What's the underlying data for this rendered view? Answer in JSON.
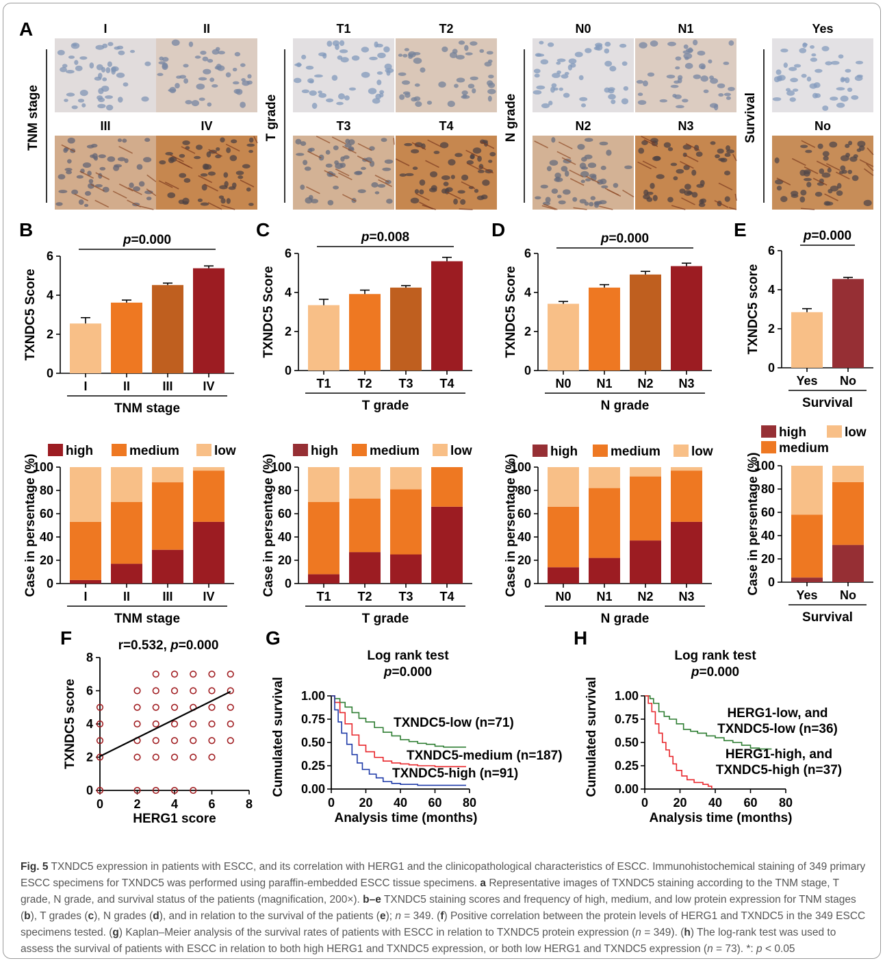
{
  "colors": {
    "low": "#f8bf87",
    "medium": "#ee7822",
    "medium_dark": "#bf5f1f",
    "high": "#9c1c22",
    "high_alt": "#962f34",
    "km_low": "#2e7d32",
    "km_medium": "#e8262b",
    "km_high": "#1e3aa8",
    "scatter_point": "#a01c20",
    "tissue_stain": "#b86a2d",
    "tissue_nuclei": "#8aa6cc"
  },
  "panel_letters": [
    "A",
    "B",
    "C",
    "D",
    "E",
    "F",
    "G",
    "H"
  ],
  "panel_a": {
    "groups": [
      {
        "row_label": "TNM stage",
        "labels": [
          "I",
          "II",
          "III",
          "IV"
        ],
        "stain_levels": [
          0.15,
          0.3,
          0.6,
          0.95
        ]
      },
      {
        "row_label": "T grade",
        "labels": [
          "T1",
          "T2",
          "T3",
          "T4"
        ],
        "stain_levels": [
          0.12,
          0.35,
          0.55,
          0.95
        ]
      },
      {
        "row_label": "N grade",
        "labels": [
          "N0",
          "N1",
          "N2",
          "N3"
        ],
        "stain_levels": [
          0.12,
          0.3,
          0.55,
          0.95
        ]
      },
      {
        "row_label": "Survival",
        "labels": [
          "Yes",
          "No"
        ],
        "stain_levels": [
          0.1,
          0.9
        ]
      }
    ]
  },
  "chart_data": [
    {
      "id": "B",
      "type": "bar",
      "categories": [
        "I",
        "II",
        "III",
        "IV"
      ],
      "values": [
        2.55,
        3.62,
        4.52,
        5.38
      ],
      "errors": [
        0.3,
        0.13,
        0.1,
        0.12
      ],
      "xlabel": "TNM stage",
      "ylabel": "TXNDC5 Score",
      "ylim": [
        0,
        6
      ],
      "yticks": [
        "0",
        "2",
        "4",
        "6"
      ],
      "pvalue": "=0.000",
      "bar_color_keys": [
        "low",
        "medium",
        "medium_dark",
        "high"
      ]
    },
    {
      "id": "C",
      "type": "bar",
      "categories": [
        "T1",
        "T2",
        "T3",
        "T4"
      ],
      "values": [
        3.35,
        3.92,
        4.25,
        5.6
      ],
      "errors": [
        0.3,
        0.2,
        0.1,
        0.2
      ],
      "xlabel": "T grade",
      "ylabel": "TXNDC5 Score",
      "ylim": [
        0,
        6
      ],
      "yticks": [
        "0",
        "2",
        "4",
        "6"
      ],
      "pvalue": "=0.008",
      "bar_color_keys": [
        "low",
        "medium",
        "medium_dark",
        "high"
      ]
    },
    {
      "id": "D",
      "type": "bar",
      "categories": [
        "N0",
        "N1",
        "N2",
        "N3"
      ],
      "values": [
        3.42,
        4.25,
        4.92,
        5.35
      ],
      "errors": [
        0.12,
        0.15,
        0.16,
        0.15
      ],
      "xlabel": "N grade",
      "ylabel": "TXNDC5 Score",
      "ylim": [
        0,
        6
      ],
      "yticks": [
        "0",
        "2",
        "4",
        "6"
      ],
      "pvalue": "=0.000",
      "bar_color_keys": [
        "low",
        "medium",
        "medium_dark",
        "high"
      ]
    },
    {
      "id": "E",
      "type": "bar",
      "categories": [
        "Yes",
        "No"
      ],
      "values": [
        2.85,
        4.55
      ],
      "errors": [
        0.18,
        0.08
      ],
      "xlabel": "Survival",
      "ylabel": "TXNDC5 score",
      "ylim": [
        0,
        6
      ],
      "yticks": [
        "0",
        "2",
        "4",
        "6"
      ],
      "pvalue": "=0.000",
      "bar_color_keys": [
        "low",
        "high_alt"
      ]
    },
    {
      "id": "B2",
      "type": "bar",
      "stacked": true,
      "categories": [
        "I",
        "II",
        "III",
        "IV"
      ],
      "series": [
        {
          "name": "high",
          "values": [
            3,
            17,
            29,
            53
          ]
        },
        {
          "name": "medium",
          "values": [
            50,
            53,
            58,
            44
          ]
        },
        {
          "name": "low",
          "values": [
            47,
            30,
            13,
            3
          ]
        }
      ],
      "xlabel": "TNM stage",
      "ylabel": "Case in persentage (%)",
      "ylim": [
        0,
        100
      ],
      "yticks": [
        "0",
        "20",
        "40",
        "60",
        "80",
        "100"
      ]
    },
    {
      "id": "C2",
      "type": "bar",
      "stacked": true,
      "categories": [
        "T1",
        "T2",
        "T3",
        "T4"
      ],
      "series": [
        {
          "name": "high",
          "values": [
            8,
            27,
            25,
            66
          ]
        },
        {
          "name": "medium",
          "values": [
            62,
            46,
            56,
            34
          ]
        },
        {
          "name": "low",
          "values": [
            30,
            27,
            19,
            0
          ]
        }
      ],
      "xlabel": "T grade",
      "ylabel": "Case in persentage (%)",
      "ylim": [
        0,
        100
      ],
      "yticks": [
        "0",
        "20",
        "40",
        "60",
        "80",
        "100"
      ]
    },
    {
      "id": "D2",
      "type": "bar",
      "stacked": true,
      "categories": [
        "N0",
        "N1",
        "N2",
        "N3"
      ],
      "series": [
        {
          "name": "high",
          "values": [
            14,
            22,
            37,
            53
          ]
        },
        {
          "name": "medium",
          "values": [
            52,
            60,
            55,
            44
          ]
        },
        {
          "name": "low",
          "values": [
            34,
            18,
            8,
            3
          ]
        }
      ],
      "xlabel": "N grade",
      "ylabel": "Case in persentage (%)",
      "ylim": [
        0,
        100
      ],
      "yticks": [
        "0",
        "20",
        "40",
        "60",
        "80",
        "100"
      ]
    },
    {
      "id": "E2",
      "type": "bar",
      "stacked": true,
      "categories": [
        "Yes",
        "No"
      ],
      "series": [
        {
          "name": "high",
          "values": [
            4,
            32
          ]
        },
        {
          "name": "medium",
          "values": [
            54,
            54
          ]
        },
        {
          "name": "low",
          "values": [
            42,
            14
          ]
        }
      ],
      "xlabel": "Survival",
      "ylabel": "Case in persentage (%)",
      "ylim": [
        0,
        100
      ],
      "yticks": [
        "0",
        "20",
        "40",
        "60",
        "80",
        "100"
      ]
    },
    {
      "id": "F",
      "type": "scatter",
      "xlabel": "HERG1 score",
      "ylabel": "TXNDC5 score",
      "xlim": [
        0,
        8
      ],
      "ylim": [
        0,
        8
      ],
      "xticks": [
        "0",
        "2",
        "4",
        "6",
        "8"
      ],
      "yticks": [
        "0",
        "2",
        "4",
        "6",
        "8"
      ],
      "annotation": "r=0.532, ",
      "pvalue": "=0.000",
      "regression": [
        [
          0,
          2.05
        ],
        [
          7,
          5.95
        ]
      ],
      "points": [
        [
          0,
          0
        ],
        [
          0,
          2
        ],
        [
          0,
          3
        ],
        [
          0,
          4
        ],
        [
          0,
          5
        ],
        [
          2,
          0
        ],
        [
          2,
          2
        ],
        [
          2,
          3
        ],
        [
          2,
          4
        ],
        [
          2,
          5
        ],
        [
          2,
          6
        ],
        [
          3,
          0
        ],
        [
          3,
          2
        ],
        [
          3,
          3
        ],
        [
          3,
          4
        ],
        [
          3,
          5
        ],
        [
          3,
          6
        ],
        [
          3,
          7
        ],
        [
          4,
          0
        ],
        [
          4,
          2
        ],
        [
          4,
          3
        ],
        [
          4,
          4
        ],
        [
          4,
          5
        ],
        [
          4,
          6
        ],
        [
          4,
          7
        ],
        [
          5,
          0
        ],
        [
          5,
          2
        ],
        [
          5,
          3
        ],
        [
          5,
          4
        ],
        [
          5,
          5
        ],
        [
          5,
          6
        ],
        [
          5,
          7
        ],
        [
          6,
          2
        ],
        [
          6,
          3
        ],
        [
          6,
          4
        ],
        [
          6,
          5
        ],
        [
          6,
          6
        ],
        [
          6,
          7
        ],
        [
          7,
          3
        ],
        [
          7,
          4
        ],
        [
          7,
          5
        ],
        [
          7,
          6
        ],
        [
          7,
          7
        ]
      ]
    },
    {
      "id": "G",
      "type": "line",
      "title": "Log rank test",
      "pvalue": "=0.000",
      "xlabel": "Analysis time (months)",
      "ylabel": "Cumulated survival",
      "xlim": [
        0,
        80
      ],
      "ylim": [
        0,
        1
      ],
      "xticks": [
        "0",
        "20",
        "40",
        "60",
        "80"
      ],
      "yticks": [
        "0.00",
        "0.25",
        "0.50",
        "0.75",
        "1.00"
      ],
      "series": [
        {
          "name": "TXNDC5-low (n=71)",
          "color_key": "km_low",
          "points": [
            [
              0,
              1
            ],
            [
              2,
              0.97
            ],
            [
              5,
              0.93
            ],
            [
              8,
              0.88
            ],
            [
              12,
              0.82
            ],
            [
              16,
              0.76
            ],
            [
              20,
              0.72
            ],
            [
              25,
              0.66
            ],
            [
              30,
              0.61
            ],
            [
              35,
              0.57
            ],
            [
              40,
              0.53
            ],
            [
              45,
              0.51
            ],
            [
              50,
              0.49
            ],
            [
              55,
              0.48
            ],
            [
              60,
              0.46
            ],
            [
              65,
              0.45
            ],
            [
              78,
              0.45
            ]
          ]
        },
        {
          "name": "TXNDC5-medium (n=187)",
          "color_key": "km_medium",
          "points": [
            [
              0,
              1
            ],
            [
              2,
              0.93
            ],
            [
              5,
              0.82
            ],
            [
              8,
              0.7
            ],
            [
              12,
              0.58
            ],
            [
              16,
              0.47
            ],
            [
              20,
              0.4
            ],
            [
              25,
              0.34
            ],
            [
              30,
              0.3
            ],
            [
              35,
              0.28
            ],
            [
              40,
              0.27
            ],
            [
              45,
              0.26
            ],
            [
              50,
              0.25
            ],
            [
              60,
              0.24
            ],
            [
              78,
              0.24
            ]
          ]
        },
        {
          "name": "TXNDC5-high (n=91)",
          "color_key": "km_high",
          "points": [
            [
              0,
              1
            ],
            [
              2,
              0.85
            ],
            [
              4,
              0.72
            ],
            [
              6,
              0.6
            ],
            [
              9,
              0.48
            ],
            [
              12,
              0.37
            ],
            [
              15,
              0.28
            ],
            [
              18,
              0.21
            ],
            [
              22,
              0.16
            ],
            [
              26,
              0.12
            ],
            [
              30,
              0.08
            ],
            [
              35,
              0.06
            ],
            [
              40,
              0.05
            ],
            [
              50,
              0.04
            ],
            [
              78,
              0.04
            ]
          ]
        }
      ]
    },
    {
      "id": "H",
      "type": "line",
      "title": "Log rank test",
      "pvalue": "=0.000",
      "xlabel": "Analysis time (months)",
      "ylabel": "Cumulated survival",
      "xlim": [
        0,
        80
      ],
      "ylim": [
        0,
        1
      ],
      "xticks": [
        "0",
        "20",
        "40",
        "60",
        "80"
      ],
      "yticks": [
        "0.00",
        "0.25",
        "0.50",
        "0.75",
        "1.00"
      ],
      "series": [
        {
          "name": "HERG1-low, and TXNDC5-low (n=36)",
          "color_key": "km_low",
          "points": [
            [
              0,
              1
            ],
            [
              3,
              0.97
            ],
            [
              5,
              0.92
            ],
            [
              8,
              0.83
            ],
            [
              11,
              0.78
            ],
            [
              14,
              0.75
            ],
            [
              18,
              0.7
            ],
            [
              22,
              0.64
            ],
            [
              26,
              0.62
            ],
            [
              30,
              0.6
            ],
            [
              35,
              0.57
            ],
            [
              40,
              0.55
            ],
            [
              45,
              0.52
            ],
            [
              50,
              0.5
            ],
            [
              55,
              0.47
            ],
            [
              60,
              0.44
            ],
            [
              65,
              0.43
            ],
            [
              72,
              0.43
            ]
          ]
        },
        {
          "name": "HERG1-high, and TXNDC5-high (n=37)",
          "color_key": "km_medium",
          "points": [
            [
              0,
              1
            ],
            [
              2,
              0.92
            ],
            [
              4,
              0.83
            ],
            [
              6,
              0.7
            ],
            [
              8,
              0.6
            ],
            [
              10,
              0.5
            ],
            [
              12,
              0.42
            ],
            [
              14,
              0.35
            ],
            [
              16,
              0.27
            ],
            [
              18,
              0.2
            ],
            [
              21,
              0.14
            ],
            [
              24,
              0.1
            ],
            [
              28,
              0.07
            ],
            [
              33,
              0.05
            ],
            [
              36,
              0.03
            ],
            [
              38,
              0
            ]
          ]
        }
      ]
    }
  ],
  "caption": {
    "fig_label": "Fig. 5",
    "text_1": " TXNDC5 expression in patients with ESCC, and its correlation with HERG1 and the clinicopathological characteristics of ESCC. Immunohistochemical staining of 349 primary ESCC specimens for TXNDC5 was performed using paraffin-embedded ESCC tissue specimens. ",
    "a": "a",
    "text_2": " Representative images of TXNDC5 staining according to the TNM stage, T grade, N grade, and survival status of the patients (magnification, 200×). ",
    "be": "b–e",
    "text_3": " TXNDC5 staining scores and frequency of high, medium, and low protein expression for TNM stages (",
    "b": "b",
    "text_4": "), T grades (",
    "c": "c",
    "text_5": "), N grades (",
    "d": "d",
    "text_6": "), and in relation to the survival of the patients (",
    "e": "e",
    "text_7": "); ",
    "n1": "n",
    "text_8": " = 349. (",
    "f": "f",
    "text_9": ") Positive correlation between the protein levels of HERG1 and TXNDC5 in the 349 ESCC specimens tested. (",
    "g": "g",
    "text_10": ") Kaplan–Meier analysis of the survival rates of patients with ESCC in relation to TXNDC5 protein expression (",
    "n2": "n",
    "text_11": " = 349). (",
    "h": "h",
    "text_12": ") The log-rank test was used to assess the survival of patients with ESCC in relation to both high HERG1 and TXNDC5 expression, or both low HERG1 and TXNDC5 expression (",
    "n3": "n",
    "text_13": " = 73). *: ",
    "p": "p",
    "text_14": " < 0.05"
  }
}
